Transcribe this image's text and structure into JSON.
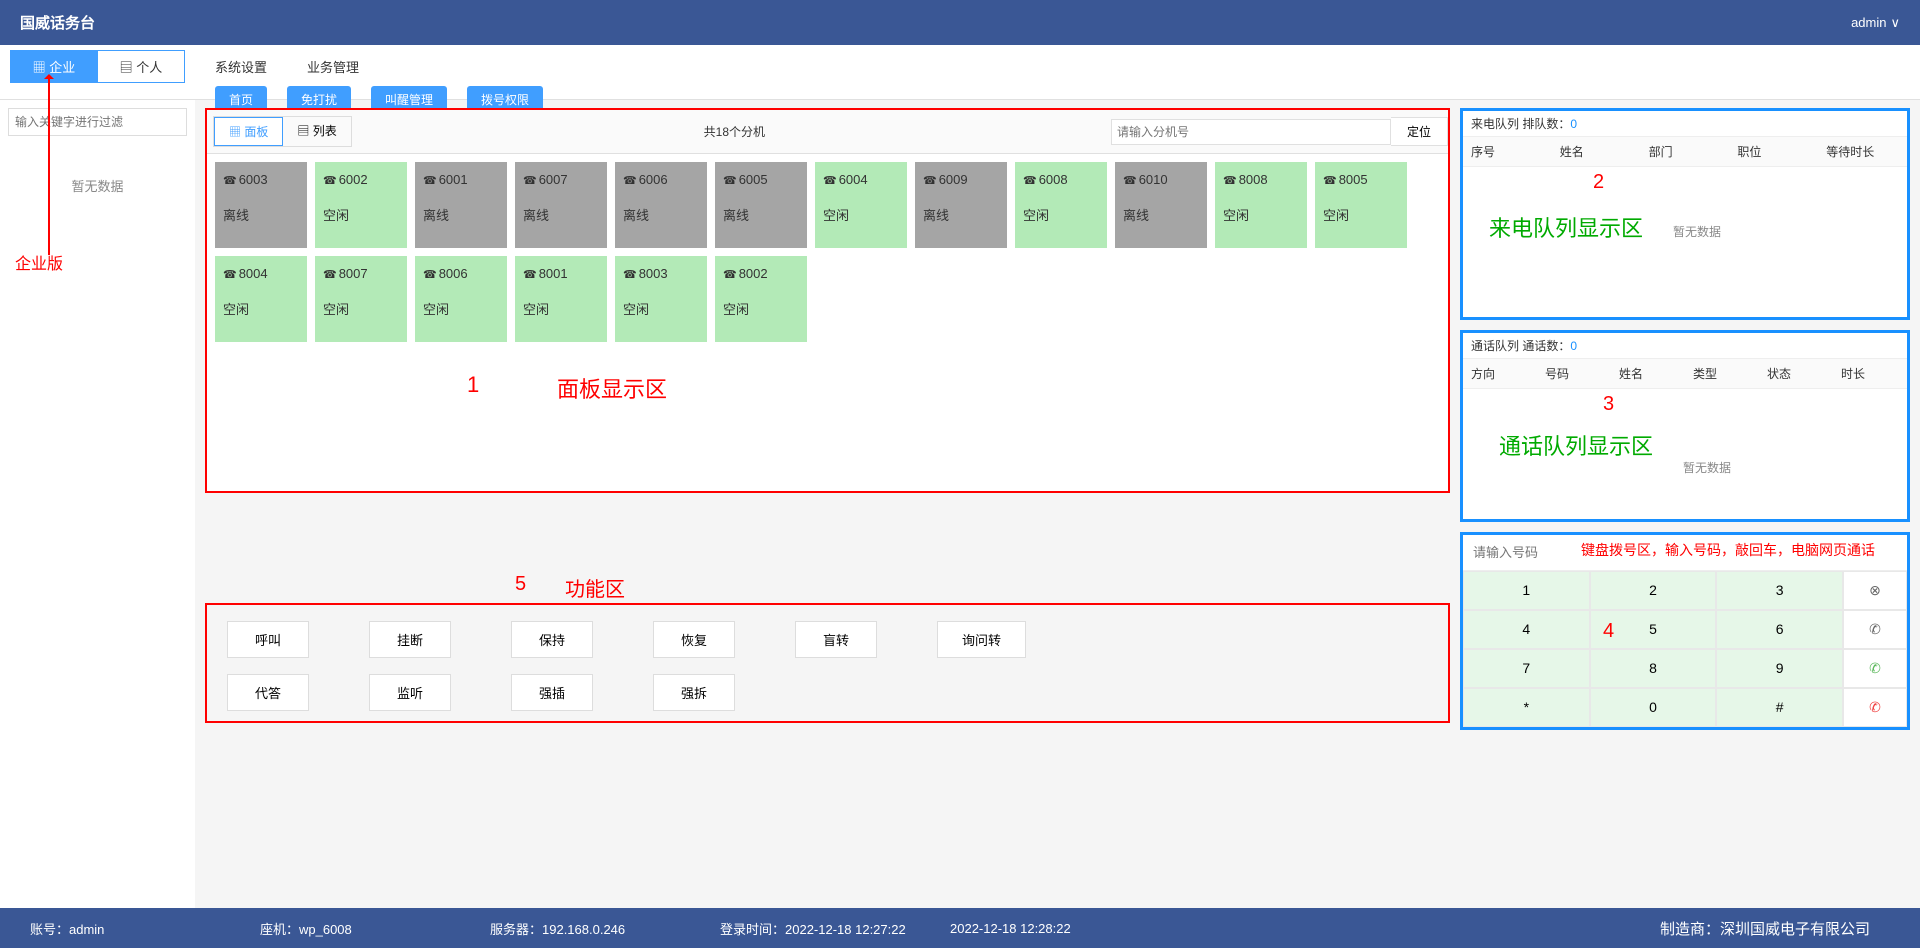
{
  "header": {
    "title": "国威话务台",
    "user": "admin"
  },
  "left_tabs": {
    "enterprise": "企业",
    "personal": "个人"
  },
  "menu": {
    "system": "系统设置",
    "biz": "业务管理"
  },
  "buttons": {
    "home": "首页",
    "dnd": "免打扰",
    "wake": "叫醒管理",
    "dial_auth": "拨号权限"
  },
  "sidebar": {
    "filter_ph": "输入关键字进行过滤",
    "empty": "暂无数据",
    "anno": "企业版"
  },
  "panel": {
    "tab_panel": "面板",
    "tab_list": "列表",
    "count_text": "共18个分机",
    "search_ph": "请输入分机号",
    "locate": "定位",
    "extensions": [
      {
        "num": "6003",
        "status": "离线",
        "cls": "offline"
      },
      {
        "num": "6002",
        "status": "空闲",
        "cls": "idle"
      },
      {
        "num": "6001",
        "status": "离线",
        "cls": "offline"
      },
      {
        "num": "6007",
        "status": "离线",
        "cls": "offline"
      },
      {
        "num": "6006",
        "status": "离线",
        "cls": "offline"
      },
      {
        "num": "6005",
        "status": "离线",
        "cls": "offline"
      },
      {
        "num": "6004",
        "status": "空闲",
        "cls": "idle"
      },
      {
        "num": "6009",
        "status": "离线",
        "cls": "offline"
      },
      {
        "num": "6008",
        "status": "空闲",
        "cls": "idle"
      },
      {
        "num": "6010",
        "status": "离线",
        "cls": "offline"
      },
      {
        "num": "8008",
        "status": "空闲",
        "cls": "idle"
      },
      {
        "num": "8005",
        "status": "空闲",
        "cls": "idle"
      },
      {
        "num": "8004",
        "status": "空闲",
        "cls": "idle"
      },
      {
        "num": "8007",
        "status": "空闲",
        "cls": "idle"
      },
      {
        "num": "8006",
        "status": "空闲",
        "cls": "idle"
      },
      {
        "num": "8001",
        "status": "空闲",
        "cls": "idle"
      },
      {
        "num": "8003",
        "status": "空闲",
        "cls": "idle"
      },
      {
        "num": "8002",
        "status": "空闲",
        "cls": "idle"
      }
    ],
    "anno_num": "1",
    "anno_text": "面板显示区"
  },
  "func": {
    "anno_num": "5",
    "anno_text": "功能区",
    "row1": [
      "呼叫",
      "挂断",
      "保持",
      "恢复",
      "盲转",
      "询问转"
    ],
    "row2": [
      "代答",
      "监听",
      "强插",
      "强拆"
    ]
  },
  "incoming_q": {
    "title_pre": "来电队列 排队数：",
    "count": "0",
    "cols": [
      "序号",
      "姓名",
      "部门",
      "职位",
      "等待时长"
    ],
    "anno_num": "2",
    "anno_text": "来电队列显示区",
    "empty": "暂无数据"
  },
  "call_q": {
    "title_pre": "通话队列 通话数：",
    "count": "0",
    "cols": [
      "方向",
      "号码",
      "姓名",
      "类型",
      "状态",
      "时长"
    ],
    "anno_num": "3",
    "anno_text": "通话队列显示区",
    "empty": "暂无数据"
  },
  "dial": {
    "input_ph": "请输入号码",
    "anno_text": "键盘拨号区，输入号码，敲回车，电脑网页通话",
    "anno_num": "4",
    "keys": [
      [
        "1",
        "2",
        "3",
        "⊗"
      ],
      [
        "4",
        "5",
        "6",
        "✆"
      ],
      [
        "7",
        "8",
        "9",
        "✆"
      ],
      [
        "*",
        "0",
        "#",
        "✆"
      ]
    ],
    "side_classes": [
      "side",
      "side",
      "side green",
      "side red"
    ]
  },
  "footer": {
    "account": "账号：admin",
    "seat": "座机：wp_6008",
    "server": "服务器：192.168.0.246",
    "login": "登录时间：2022-12-18 12:27:22",
    "now": "2022-12-18 12:28:22",
    "mfr": "制造商：深圳国威电子有限公司"
  },
  "colors": {
    "header_bg": "#3a5795",
    "primary": "#409eff",
    "red": "#f00",
    "green_text": "#00aa00",
    "offline": "#a5a5a5",
    "idle": "#b3eab7",
    "queue_border": "#1890ff"
  }
}
